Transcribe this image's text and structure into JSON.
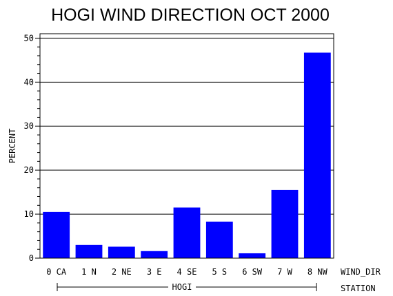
{
  "chart_data": {
    "type": "bar",
    "title": "HOGI WIND DIRECTION OCT 2000",
    "ylabel": "PERCENT",
    "xlabel": "WIND_DIR",
    "group_axis_label": "STATION",
    "group_name": "HOGI",
    "categories": [
      "0 CA",
      "1 N",
      "2 NE",
      "3 E",
      "4 SE",
      "5 S",
      "6 SW",
      "7 W",
      "8 NW"
    ],
    "values": [
      10.5,
      3.0,
      2.6,
      1.6,
      11.5,
      8.3,
      1.1,
      15.5,
      46.7
    ],
    "ylim": [
      0,
      51
    ],
    "yticks": [
      "0",
      "10",
      "20",
      "30",
      "40",
      "50"
    ],
    "grid": "horizontal",
    "bar_color": "#0000ff"
  }
}
